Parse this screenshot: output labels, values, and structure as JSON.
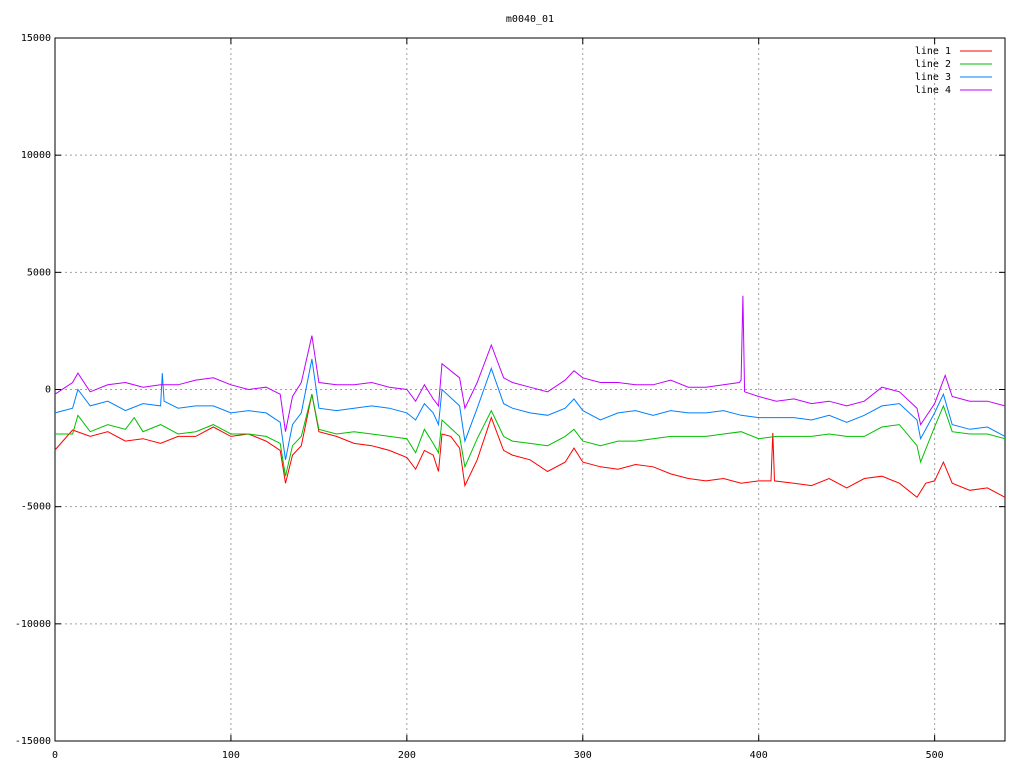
{
  "chart_data": {
    "type": "line",
    "title": "m0040_01",
    "xlim": [
      0,
      540
    ],
    "xticks": [
      0,
      100,
      200,
      300,
      400,
      500
    ],
    "ylim": [
      -15000,
      15000
    ],
    "yticks": [
      -15000,
      -10000,
      -5000,
      0,
      5000,
      10000,
      15000
    ],
    "grid": true,
    "legend": "top-right",
    "series": [
      {
        "name": "line 1",
        "color": "#ff0000",
        "x": [
          0,
          10,
          20,
          30,
          40,
          50,
          60,
          70,
          80,
          90,
          100,
          110,
          120,
          128,
          131,
          135,
          140,
          146,
          150,
          160,
          170,
          180,
          190,
          200,
          205,
          210,
          215,
          218,
          220,
          225,
          230,
          233,
          240,
          248,
          255,
          260,
          270,
          280,
          290,
          295,
          300,
          310,
          320,
          330,
          340,
          350,
          360,
          370,
          380,
          390,
          400,
          407,
          408,
          409,
          420,
          430,
          440,
          450,
          460,
          470,
          480,
          490,
          495,
          500,
          505,
          510,
          520,
          530,
          540
        ],
        "values": [
          -2580,
          -1730,
          -2000,
          -1800,
          -2200,
          -2100,
          -2300,
          -2000,
          -2000,
          -1600,
          -2000,
          -1900,
          -2200,
          -2600,
          -4000,
          -2800,
          -2400,
          -200,
          -1800,
          -2000,
          -2300,
          -2400,
          -2600,
          -2900,
          -3400,
          -2600,
          -2800,
          -3500,
          -1900,
          -2000,
          -2500,
          -4100,
          -3000,
          -1200,
          -2600,
          -2800,
          -3000,
          -3500,
          -3100,
          -2500,
          -3100,
          -3300,
          -3400,
          -3200,
          -3300,
          -3600,
          -3800,
          -3900,
          -3800,
          -4000,
          -3900,
          -3900,
          -1850,
          -3900,
          -4000,
          -4100,
          -3800,
          -4200,
          -3800,
          -3700,
          -4000,
          -4600,
          -4000,
          -3900,
          -3100,
          -4000,
          -4300,
          -4200,
          -4600
        ]
      },
      {
        "name": "line 2",
        "color": "#00c000",
        "x": [
          0,
          10,
          13,
          20,
          30,
          40,
          45,
          50,
          60,
          70,
          80,
          90,
          100,
          110,
          120,
          128,
          131,
          135,
          140,
          146,
          150,
          160,
          170,
          180,
          190,
          200,
          205,
          210,
          215,
          218,
          220,
          230,
          233,
          240,
          248,
          255,
          260,
          270,
          280,
          290,
          295,
          300,
          310,
          320,
          330,
          340,
          350,
          360,
          370,
          380,
          390,
          400,
          410,
          420,
          430,
          440,
          450,
          460,
          470,
          480,
          490,
          492,
          500,
          505,
          510,
          520,
          530,
          540
        ],
        "values": [
          -1900,
          -1900,
          -1100,
          -1800,
          -1500,
          -1700,
          -1200,
          -1800,
          -1500,
          -1900,
          -1800,
          -1500,
          -1900,
          -1900,
          -2000,
          -2300,
          -3700,
          -2400,
          -2000,
          -200,
          -1700,
          -1900,
          -1800,
          -1900,
          -2000,
          -2100,
          -2700,
          -1700,
          -2300,
          -2700,
          -1300,
          -2000,
          -3300,
          -2100,
          -900,
          -2000,
          -2200,
          -2300,
          -2400,
          -2000,
          -1700,
          -2200,
          -2400,
          -2200,
          -2200,
          -2100,
          -2000,
          -2000,
          -2000,
          -1900,
          -1800,
          -2100,
          -2000,
          -2000,
          -2000,
          -1900,
          -2000,
          -2000,
          -1600,
          -1500,
          -2400,
          -3100,
          -1600,
          -700,
          -1800,
          -1900,
          -1900,
          -2100
        ]
      },
      {
        "name": "line 3",
        "color": "#0080ff",
        "x": [
          0,
          10,
          13,
          20,
          30,
          40,
          50,
          60,
          61,
          62,
          70,
          80,
          90,
          100,
          110,
          120,
          128,
          131,
          135,
          140,
          146,
          150,
          160,
          170,
          180,
          190,
          200,
          205,
          210,
          215,
          218,
          220,
          230,
          233,
          240,
          248,
          255,
          260,
          270,
          280,
          290,
          295,
          300,
          310,
          320,
          330,
          340,
          350,
          360,
          370,
          380,
          390,
          400,
          410,
          420,
          430,
          440,
          450,
          460,
          470,
          480,
          490,
          492,
          500,
          505,
          510,
          520,
          530,
          540
        ],
        "values": [
          -1000,
          -800,
          0,
          -700,
          -500,
          -900,
          -600,
          -700,
          700,
          -500,
          -800,
          -700,
          -700,
          -1000,
          -900,
          -1000,
          -1400,
          -3000,
          -1500,
          -1000,
          1300,
          -800,
          -900,
          -800,
          -700,
          -800,
          -1000,
          -1300,
          -600,
          -1000,
          -1500,
          0,
          -700,
          -2200,
          -800,
          900,
          -600,
          -800,
          -1000,
          -1100,
          -800,
          -400,
          -900,
          -1300,
          -1000,
          -900,
          -1100,
          -900,
          -1000,
          -1000,
          -900,
          -1100,
          -1200,
          -1200,
          -1200,
          -1300,
          -1100,
          -1400,
          -1100,
          -700,
          -600,
          -1300,
          -2100,
          -1000,
          -200,
          -1500,
          -1700,
          -1600,
          -2000
        ]
      },
      {
        "name": "line 4",
        "color": "#c000ff",
        "x": [
          0,
          10,
          13,
          20,
          30,
          40,
          50,
          60,
          70,
          80,
          90,
          100,
          110,
          120,
          128,
          131,
          135,
          140,
          146,
          150,
          160,
          170,
          180,
          190,
          200,
          205,
          210,
          215,
          218,
          220,
          230,
          233,
          240,
          248,
          255,
          260,
          270,
          280,
          290,
          295,
          300,
          310,
          320,
          330,
          340,
          350,
          360,
          370,
          380,
          389,
          390,
          391,
          392,
          400,
          410,
          420,
          430,
          440,
          450,
          460,
          470,
          480,
          490,
          492,
          500,
          506,
          510,
          520,
          530,
          540
        ],
        "values": [
          -200,
          300,
          700,
          -100,
          200,
          300,
          100,
          200,
          200,
          400,
          500,
          200,
          0,
          100,
          -200,
          -1800,
          -300,
          300,
          2300,
          300,
          200,
          200,
          300,
          100,
          0,
          -500,
          200,
          -400,
          -700,
          1100,
          500,
          -800,
          300,
          1900,
          500,
          300,
          100,
          -100,
          400,
          800,
          500,
          300,
          300,
          200,
          200,
          400,
          100,
          100,
          200,
          300,
          400,
          4000,
          -100,
          -300,
          -500,
          -400,
          -600,
          -500,
          -700,
          -500,
          100,
          -100,
          -800,
          -1500,
          -600,
          600,
          -300,
          -500,
          -500,
          -700
        ]
      }
    ]
  }
}
